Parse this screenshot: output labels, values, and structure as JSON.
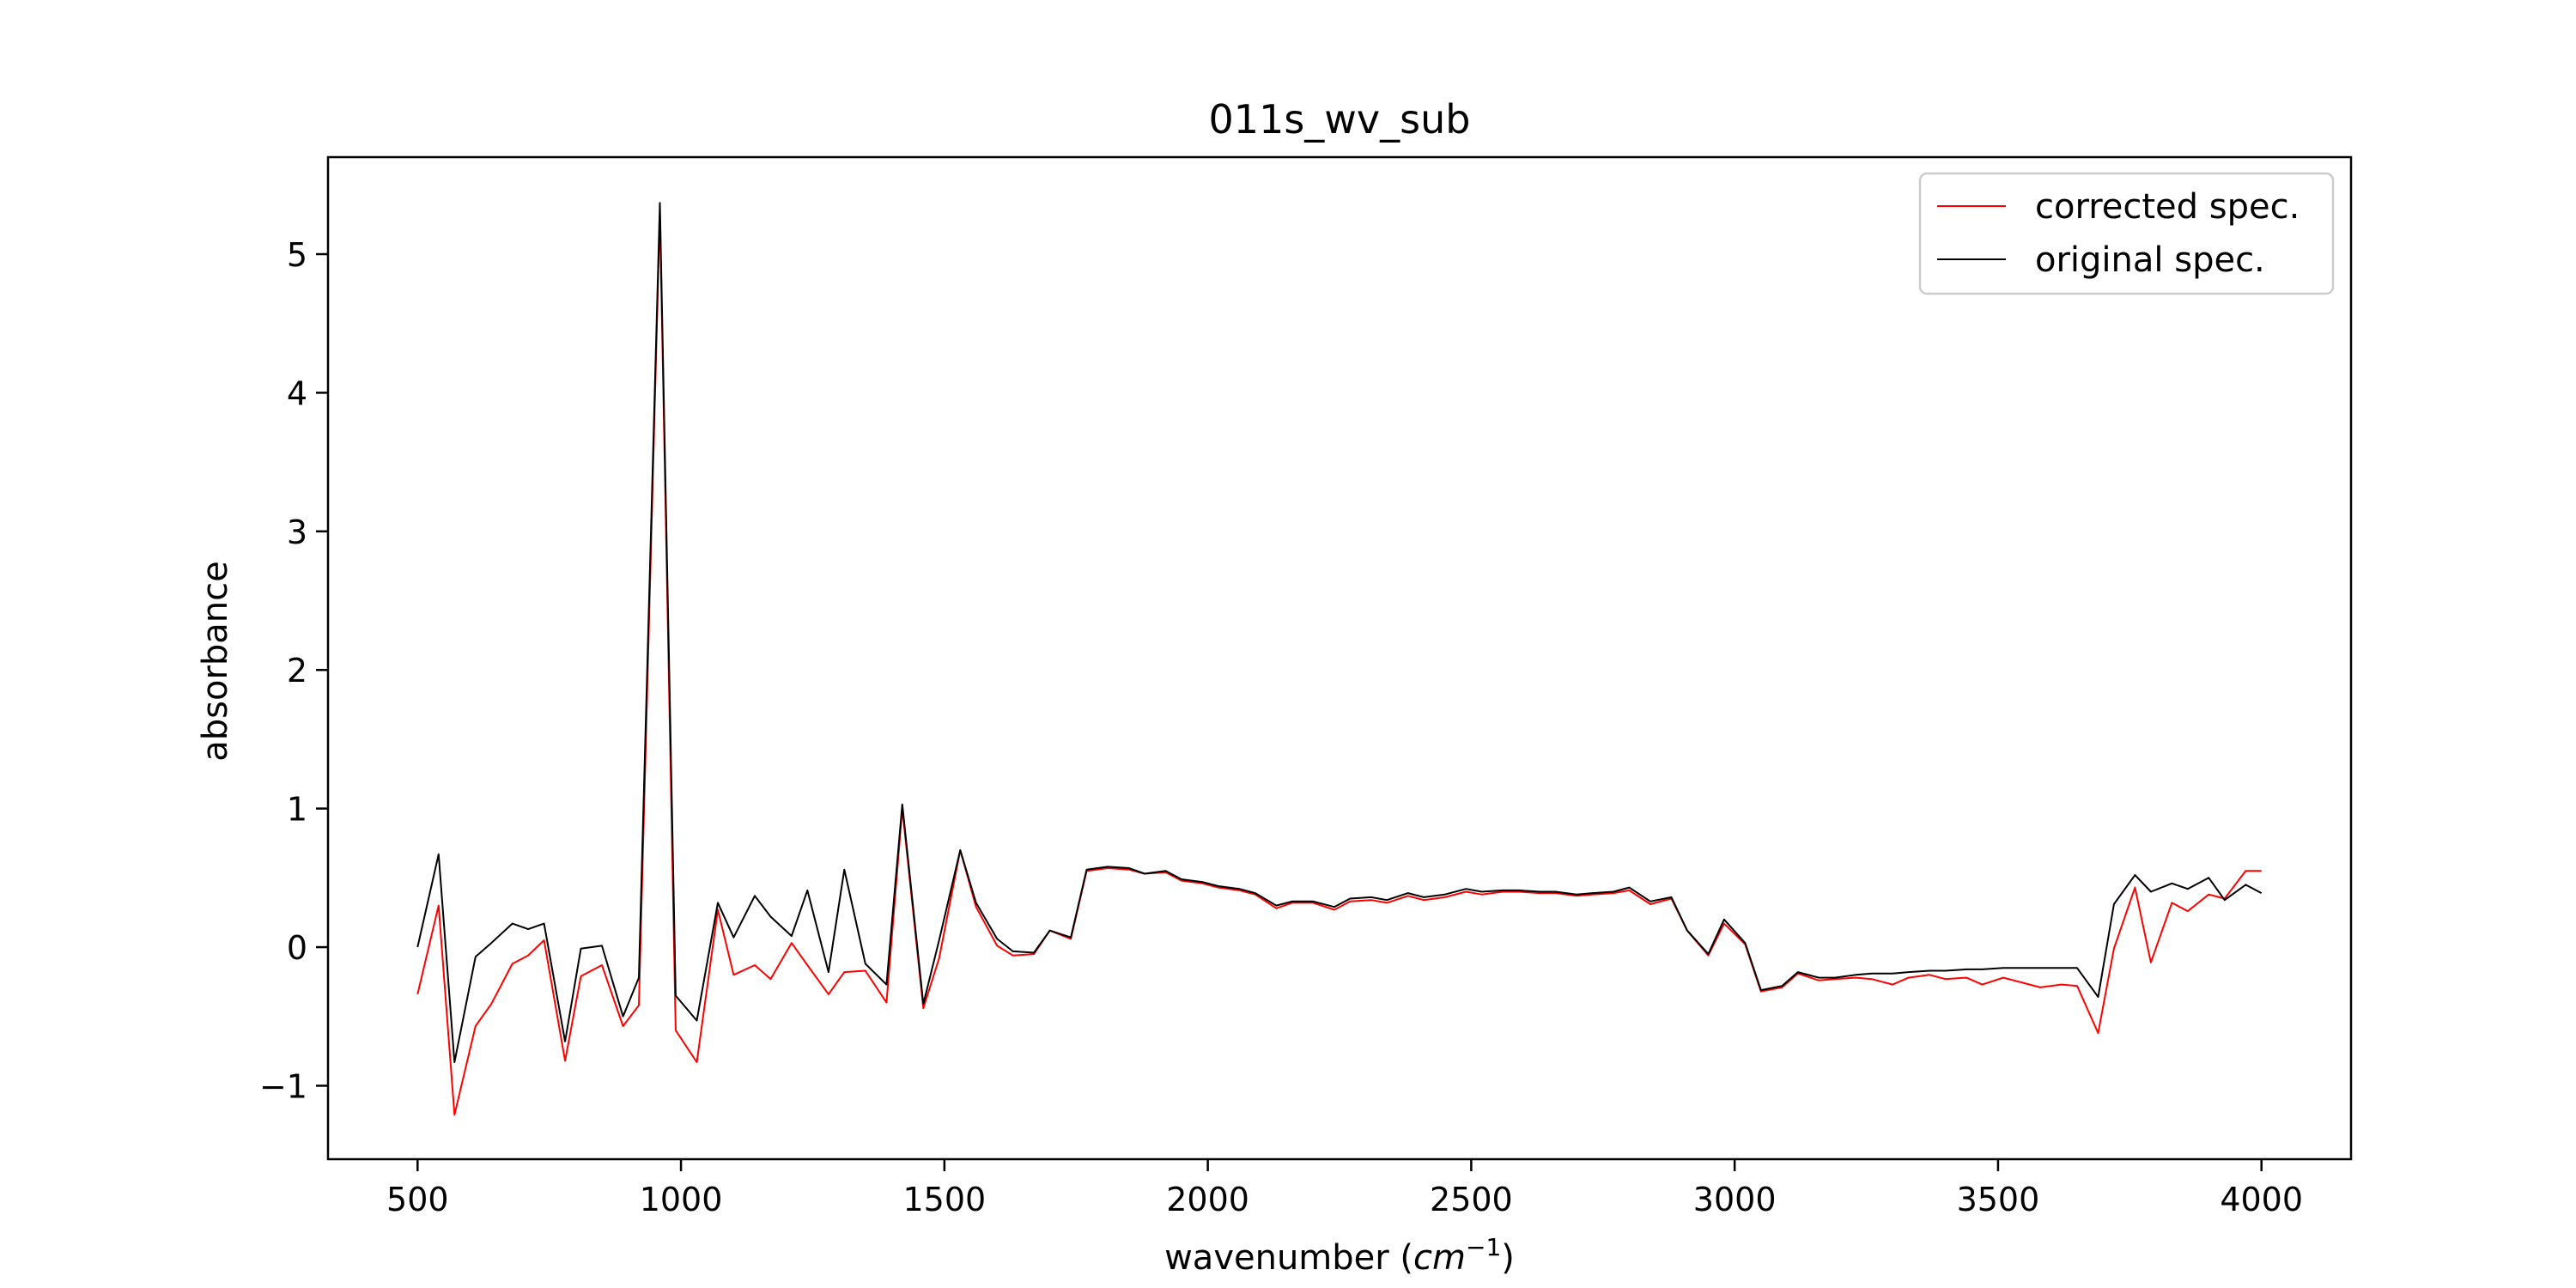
{
  "chart_data": {
    "type": "line",
    "title": "011s_wv_sub",
    "xlabel_prefix": "wavenumber (",
    "xlabel_unit": "cm",
    "xlabel_exp": "−1",
    "xlabel_suffix": ")",
    "ylabel": "absorbance",
    "xlim": [
      330,
      4170
    ],
    "ylim": [
      -1.53,
      5.7
    ],
    "xticks": [
      500,
      1000,
      1500,
      2000,
      2500,
      3000,
      3500,
      4000
    ],
    "xtick_labels": [
      "500",
      "1000",
      "1500",
      "2000",
      "2500",
      "3000",
      "3500",
      "4000"
    ],
    "yticks": [
      -1,
      0,
      1,
      2,
      3,
      4,
      5
    ],
    "ytick_labels": [
      "−1",
      "0",
      "1",
      "2",
      "3",
      "4",
      "5"
    ],
    "grid": false,
    "legend_position": "top-right",
    "series": [
      {
        "name": "corrected spec.",
        "color": "#ff0000",
        "x": [
          500,
          540,
          570,
          610,
          640,
          680,
          710,
          740,
          780,
          810,
          850,
          890,
          920,
          960,
          990,
          1030,
          1070,
          1100,
          1140,
          1170,
          1210,
          1240,
          1280,
          1310,
          1350,
          1390,
          1420,
          1460,
          1490,
          1530,
          1560,
          1600,
          1630,
          1670,
          1700,
          1740,
          1770,
          1810,
          1850,
          1880,
          1920,
          1950,
          1990,
          2020,
          2060,
          2090,
          2130,
          2160,
          2200,
          2240,
          2270,
          2310,
          2340,
          2380,
          2410,
          2450,
          2490,
          2520,
          2560,
          2590,
          2630,
          2660,
          2700,
          2730,
          2770,
          2800,
          2840,
          2880,
          2910,
          2950,
          2980,
          3020,
          3050,
          3090,
          3120,
          3160,
          3190,
          3230,
          3260,
          3300,
          3330,
          3370,
          3400,
          3440,
          3470,
          3510,
          3550,
          3580,
          3620,
          3650,
          3690,
          3720,
          3760,
          3790,
          3830,
          3860,
          3900,
          3930,
          3970,
          4000
        ],
        "values": [
          -0.34,
          0.3,
          -1.21,
          -0.57,
          -0.41,
          -0.12,
          -0.06,
          0.05,
          -0.82,
          -0.21,
          -0.13,
          -0.57,
          -0.42,
          5.3,
          -0.6,
          -0.83,
          0.27,
          -0.2,
          -0.13,
          -0.23,
          0.03,
          -0.13,
          -0.34,
          -0.18,
          -0.17,
          -0.4,
          1.0,
          -0.44,
          -0.08,
          0.7,
          0.29,
          0.01,
          -0.06,
          -0.05,
          0.12,
          0.06,
          0.55,
          0.57,
          0.56,
          0.53,
          0.54,
          0.48,
          0.46,
          0.43,
          0.41,
          0.38,
          0.28,
          0.32,
          0.32,
          0.27,
          0.33,
          0.34,
          0.32,
          0.37,
          0.34,
          0.36,
          0.4,
          0.38,
          0.4,
          0.4,
          0.39,
          0.39,
          0.37,
          0.38,
          0.39,
          0.41,
          0.31,
          0.35,
          0.12,
          -0.06,
          0.17,
          0.02,
          -0.32,
          -0.29,
          -0.19,
          -0.24,
          -0.23,
          -0.22,
          -0.23,
          -0.27,
          -0.22,
          -0.2,
          -0.23,
          -0.22,
          -0.27,
          -0.22,
          -0.26,
          -0.29,
          -0.27,
          -0.28,
          -0.62,
          -0.01,
          0.43,
          -0.11,
          0.32,
          0.26,
          0.38,
          0.35,
          0.55,
          0.55
        ]
      },
      {
        "name": "original spec.",
        "color": "#000000",
        "x": [
          500,
          540,
          570,
          610,
          640,
          680,
          710,
          740,
          780,
          810,
          850,
          890,
          920,
          960,
          990,
          1030,
          1070,
          1100,
          1140,
          1170,
          1210,
          1240,
          1280,
          1310,
          1350,
          1390,
          1420,
          1460,
          1490,
          1530,
          1560,
          1600,
          1630,
          1670,
          1700,
          1740,
          1770,
          1810,
          1850,
          1880,
          1920,
          1950,
          1990,
          2020,
          2060,
          2090,
          2130,
          2160,
          2200,
          2240,
          2270,
          2310,
          2340,
          2380,
          2410,
          2450,
          2490,
          2520,
          2560,
          2590,
          2630,
          2660,
          2700,
          2730,
          2770,
          2800,
          2840,
          2880,
          2910,
          2950,
          2980,
          3020,
          3050,
          3090,
          3120,
          3160,
          3190,
          3230,
          3260,
          3300,
          3330,
          3370,
          3400,
          3440,
          3470,
          3510,
          3550,
          3580,
          3620,
          3650,
          3690,
          3720,
          3760,
          3790,
          3830,
          3860,
          3900,
          3930,
          3970,
          4000
        ],
        "values": [
          0.0,
          0.67,
          -0.83,
          -0.07,
          0.03,
          0.17,
          0.13,
          0.17,
          -0.68,
          -0.01,
          0.01,
          -0.5,
          -0.22,
          5.37,
          -0.35,
          -0.53,
          0.32,
          0.07,
          0.37,
          0.22,
          0.08,
          0.41,
          -0.18,
          0.56,
          -0.12,
          -0.27,
          1.03,
          -0.41,
          0.05,
          0.7,
          0.32,
          0.06,
          -0.03,
          -0.04,
          0.12,
          0.07,
          0.56,
          0.58,
          0.57,
          0.53,
          0.55,
          0.49,
          0.47,
          0.44,
          0.42,
          0.39,
          0.3,
          0.33,
          0.33,
          0.29,
          0.35,
          0.36,
          0.34,
          0.39,
          0.36,
          0.38,
          0.42,
          0.4,
          0.41,
          0.41,
          0.4,
          0.4,
          0.38,
          0.39,
          0.4,
          0.43,
          0.33,
          0.36,
          0.12,
          -0.05,
          0.2,
          0.03,
          -0.31,
          -0.28,
          -0.18,
          -0.22,
          -0.22,
          -0.2,
          -0.19,
          -0.19,
          -0.18,
          -0.17,
          -0.17,
          -0.16,
          -0.16,
          -0.15,
          -0.15,
          -0.15,
          -0.15,
          -0.15,
          -0.36,
          0.31,
          0.52,
          0.4,
          0.46,
          0.42,
          0.5,
          0.34,
          0.45,
          0.39
        ]
      }
    ]
  }
}
